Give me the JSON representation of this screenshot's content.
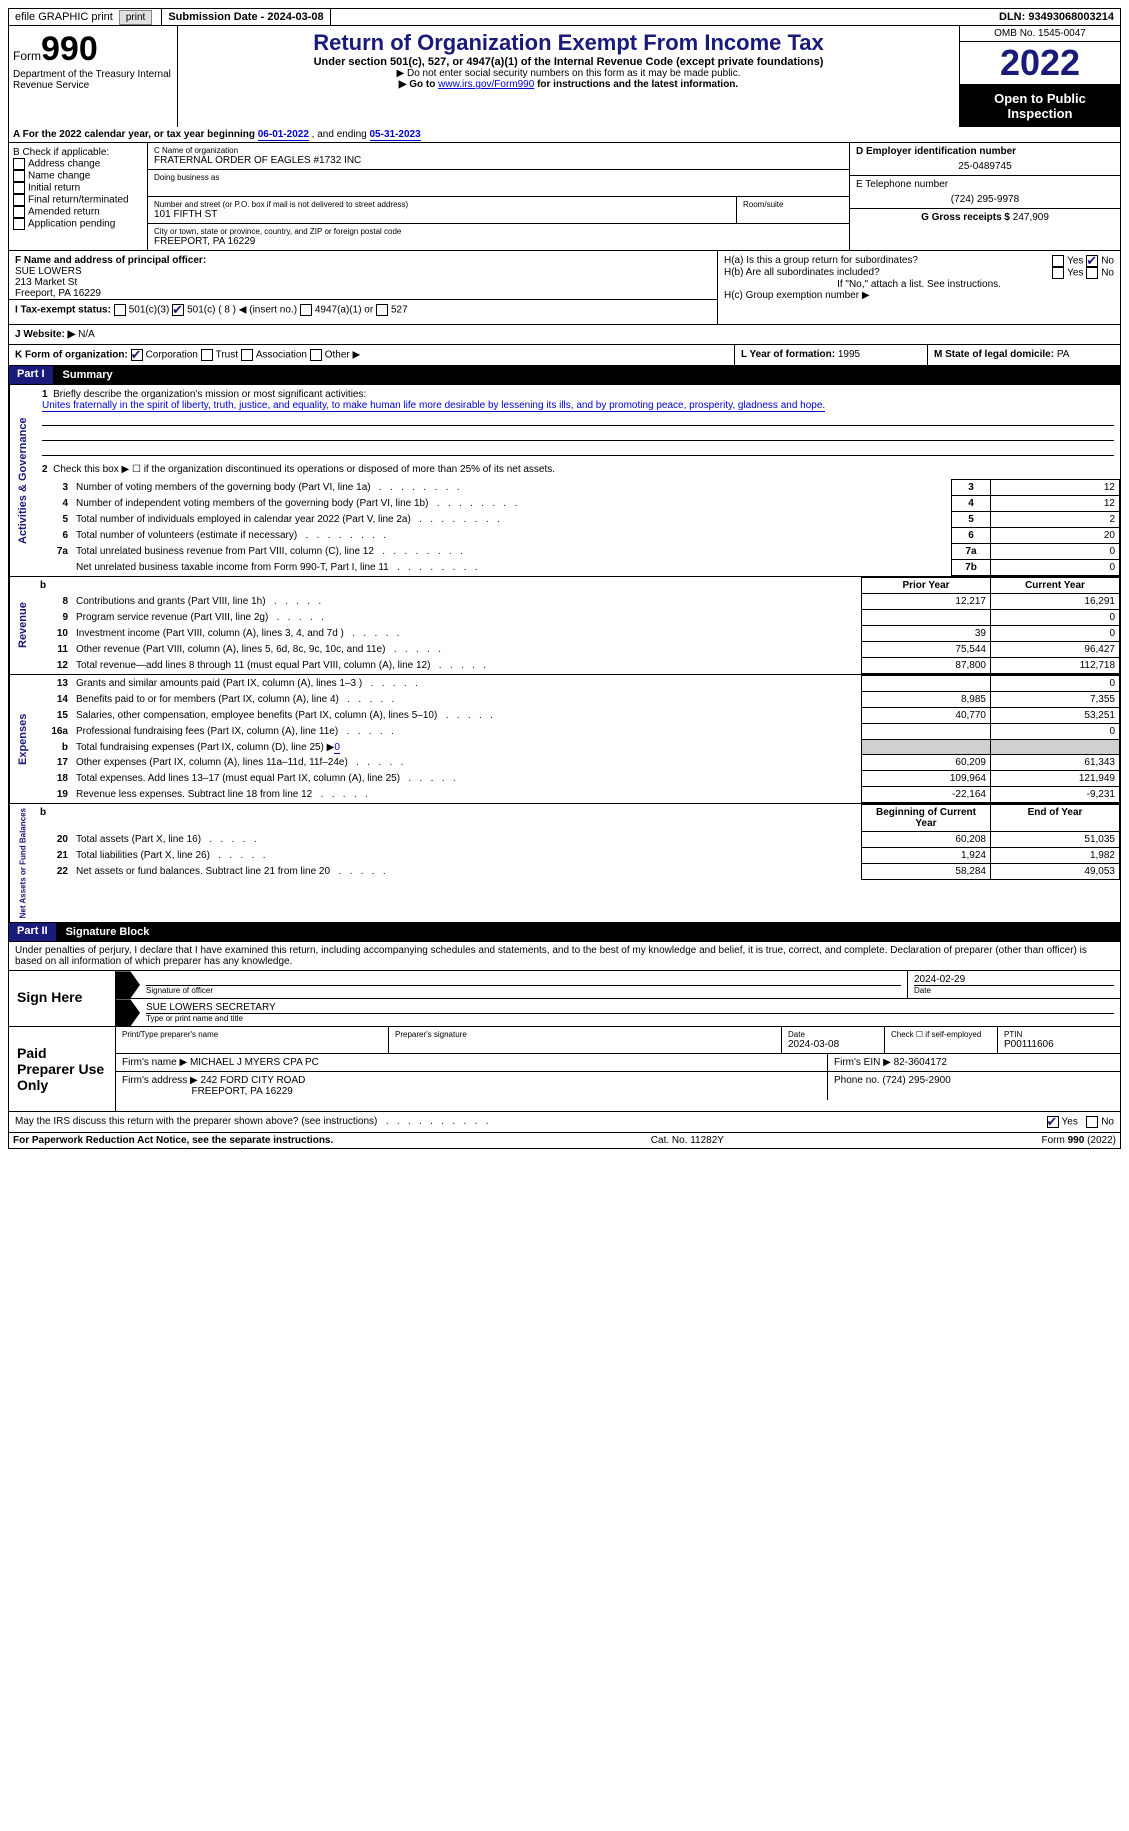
{
  "topbar": {
    "efile": "efile GRAPHIC print",
    "submission_label": "Submission Date - ",
    "submission_date": "2024-03-08",
    "dln_label": "DLN: ",
    "dln": "93493068003214"
  },
  "header": {
    "form_prefix": "Form",
    "form_num": "990",
    "dept": "Department of the Treasury Internal Revenue Service",
    "title": "Return of Organization Exempt From Income Tax",
    "sub1": "Under section 501(c), 527, or 4947(a)(1) of the Internal Revenue Code (except private foundations)",
    "sub2": "▶ Do not enter social security numbers on this form as it may be made public.",
    "sub3_pre": "▶ Go to ",
    "sub3_link": "www.irs.gov/Form990",
    "sub3_post": " for instructions and the latest information.",
    "omb_label": "OMB No. 1545-0047",
    "year": "2022",
    "open": "Open to Public Inspection"
  },
  "row_a": {
    "a": "A For the 2022 calendar year, or tax year beginning ",
    "beg": "06-01-2022",
    "mid": " , and ending ",
    "end": "05-31-2023"
  },
  "col_b": {
    "hdr": "B Check if applicable:",
    "items": [
      "Address change",
      "Name change",
      "Initial return",
      "Final return/terminated",
      "Amended return",
      "Application pending"
    ]
  },
  "col_c": {
    "name_label": "C Name of organization",
    "name": "FRATERNAL ORDER OF EAGLES #1732 INC",
    "dba_label": "Doing business as",
    "street_label": "Number and street (or P.O. box if mail is not delivered to street address)",
    "room_label": "Room/suite",
    "street": "101 FIFTH ST",
    "city_label": "City or town, state or province, country, and ZIP or foreign postal code",
    "city": "FREEPORT, PA  16229"
  },
  "col_d": {
    "d_label": "D Employer identification number",
    "d_val": "25-0489745",
    "e_label": "E Telephone number",
    "e_val": "(724) 295-9978",
    "g_label": "G Gross receipts $ ",
    "g_val": "247,909"
  },
  "row_f": {
    "f_label": "F  Name and address of principal officer:",
    "f_name": "SUE LOWERS",
    "f_addr1": "213 Market St",
    "f_addr2": "Freeport, PA  16229",
    "ha": "H(a)  Is this a group return for subordinates?",
    "hb": "H(b)  Are all subordinates included?",
    "hb_note": "If \"No,\" attach a list. See instructions.",
    "hc": "H(c)  Group exemption number ▶",
    "yes": "Yes",
    "no": "No"
  },
  "row_i": {
    "i_label": "I  Tax-exempt status:",
    "i_501c3": "501(c)(3)",
    "i_501c": "501(c) ( 8 ) ◀ (insert no.)",
    "i_4947": "4947(a)(1) or",
    "i_527": "527"
  },
  "row_j": {
    "j_label": "J  Website: ▶",
    "j_val": "  N/A"
  },
  "row_k": {
    "k_label": "K Form of organization:",
    "k_corp": "Corporation",
    "k_trust": "Trust",
    "k_assoc": "Association",
    "k_other": "Other ▶",
    "l_label": "L Year of formation: ",
    "l_val": "1995",
    "m_label": "M State of legal domicile: ",
    "m_val": "PA"
  },
  "part1": {
    "num": "Part I",
    "title": "Summary"
  },
  "summary": {
    "l1": "Briefly describe the organization's mission or most significant activities:",
    "l1_text": "Unites fraternally in the spirit of liberty, truth, justice, and equality, to make human life more desirable by lessening its ills, and by promoting peace, prosperity, gladness and hope.",
    "l2": "Check this box ▶ ☐ if the organization discontinued its operations or disposed of more than 25% of its net assets.",
    "lines_ag": [
      {
        "n": "3",
        "t": "Number of voting members of the governing body (Part VI, line 1a)",
        "bn": "3",
        "v": "12"
      },
      {
        "n": "4",
        "t": "Number of independent voting members of the governing body (Part VI, line 1b)",
        "bn": "4",
        "v": "12"
      },
      {
        "n": "5",
        "t": "Total number of individuals employed in calendar year 2022 (Part V, line 2a)",
        "bn": "5",
        "v": "2"
      },
      {
        "n": "6",
        "t": "Total number of volunteers (estimate if necessary)",
        "bn": "6",
        "v": "20"
      },
      {
        "n": "7a",
        "t": "Total unrelated business revenue from Part VIII, column (C), line 12",
        "bn": "7a",
        "v": "0"
      },
      {
        "n": "",
        "t": "Net unrelated business taxable income from Form 990-T, Part I, line 11",
        "bn": "7b",
        "v": "0"
      }
    ],
    "col_prior": "Prior Year",
    "col_curr": "Current Year",
    "rev": [
      {
        "n": "8",
        "t": "Contributions and grants (Part VIII, line 1h)",
        "p": "12,217",
        "c": "16,291"
      },
      {
        "n": "9",
        "t": "Program service revenue (Part VIII, line 2g)",
        "p": "",
        "c": "0"
      },
      {
        "n": "10",
        "t": "Investment income (Part VIII, column (A), lines 3, 4, and 7d )",
        "p": "39",
        "c": "0"
      },
      {
        "n": "11",
        "t": "Other revenue (Part VIII, column (A), lines 5, 6d, 8c, 9c, 10c, and 11e)",
        "p": "75,544",
        "c": "96,427"
      },
      {
        "n": "12",
        "t": "Total revenue—add lines 8 through 11 (must equal Part VIII, column (A), line 12)",
        "p": "87,800",
        "c": "112,718"
      }
    ],
    "exp": [
      {
        "n": "13",
        "t": "Grants and similar amounts paid (Part IX, column (A), lines 1–3 )",
        "p": "",
        "c": "0"
      },
      {
        "n": "14",
        "t": "Benefits paid to or for members (Part IX, column (A), line 4)",
        "p": "8,985",
        "c": "7,355"
      },
      {
        "n": "15",
        "t": "Salaries, other compensation, employee benefits (Part IX, column (A), lines 5–10)",
        "p": "40,770",
        "c": "53,251"
      },
      {
        "n": "16a",
        "t": "Professional fundraising fees (Part IX, column (A), line 11e)",
        "p": "",
        "c": "0"
      },
      {
        "n": "b",
        "t": "Total fundraising expenses (Part IX, column (D), line 25) ▶",
        "p": "grey",
        "c": "grey",
        "fr": "0"
      },
      {
        "n": "17",
        "t": "Other expenses (Part IX, column (A), lines 11a–11d, 11f–24e)",
        "p": "60,209",
        "c": "61,343"
      },
      {
        "n": "18",
        "t": "Total expenses. Add lines 13–17 (must equal Part IX, column (A), line 25)",
        "p": "109,964",
        "c": "121,949"
      },
      {
        "n": "19",
        "t": "Revenue less expenses. Subtract line 18 from line 12",
        "p": "-22,164",
        "c": "-9,231"
      }
    ],
    "col_beg": "Beginning of Current Year",
    "col_end": "End of Year",
    "na": [
      {
        "n": "20",
        "t": "Total assets (Part X, line 16)",
        "p": "60,208",
        "c": "51,035"
      },
      {
        "n": "21",
        "t": "Total liabilities (Part X, line 26)",
        "p": "1,924",
        "c": "1,982"
      },
      {
        "n": "22",
        "t": "Net assets or fund balances. Subtract line 21 from line 20",
        "p": "58,284",
        "c": "49,053"
      }
    ],
    "vlabels": {
      "ag": "Activities & Governance",
      "rev": "Revenue",
      "exp": "Expenses",
      "na": "Net Assets or Fund Balances"
    }
  },
  "part2": {
    "num": "Part II",
    "title": "Signature Block"
  },
  "sig": {
    "perjury": "Under penalties of perjury, I declare that I have examined this return, including accompanying schedules and statements, and to the best of my knowledge and belief, it is true, correct, and complete. Declaration of preparer (other than officer) is based on all information of which preparer has any knowledge.",
    "sign_here": "Sign Here",
    "sig_of_officer": "Signature of officer",
    "sig_date": "2024-02-29",
    "date_lbl": "Date",
    "officer_name": "SUE LOWERS SECRETARY",
    "type_name": "Type or print name and title",
    "paid": "Paid Preparer Use Only",
    "p_name_lbl": "Print/Type preparer's name",
    "p_sig_lbl": "Preparer's signature",
    "p_date_lbl": "Date",
    "p_date": "2024-03-08",
    "p_check_lbl": "Check ☐ if self-employed",
    "ptin_lbl": "PTIN",
    "ptin": "P00111606",
    "firm_name_lbl": "Firm's name    ▶ ",
    "firm_name": "MICHAEL J MYERS CPA PC",
    "firm_ein_lbl": "Firm's EIN ▶ ",
    "firm_ein": "82-3604172",
    "firm_addr_lbl": "Firm's address ▶ ",
    "firm_addr1": "242 FORD CITY ROAD",
    "firm_addr2": "FREEPORT, PA  16229",
    "firm_phone_lbl": "Phone no. ",
    "firm_phone": "(724) 295-2900",
    "discuss": "May the IRS discuss this return with the preparer shown above? (see instructions)",
    "yes": "Yes",
    "no": "No"
  },
  "footer": {
    "left": "For Paperwork Reduction Act Notice, see the separate instructions.",
    "mid": "Cat. No. 11282Y",
    "right": "Form 990 (2022)"
  }
}
